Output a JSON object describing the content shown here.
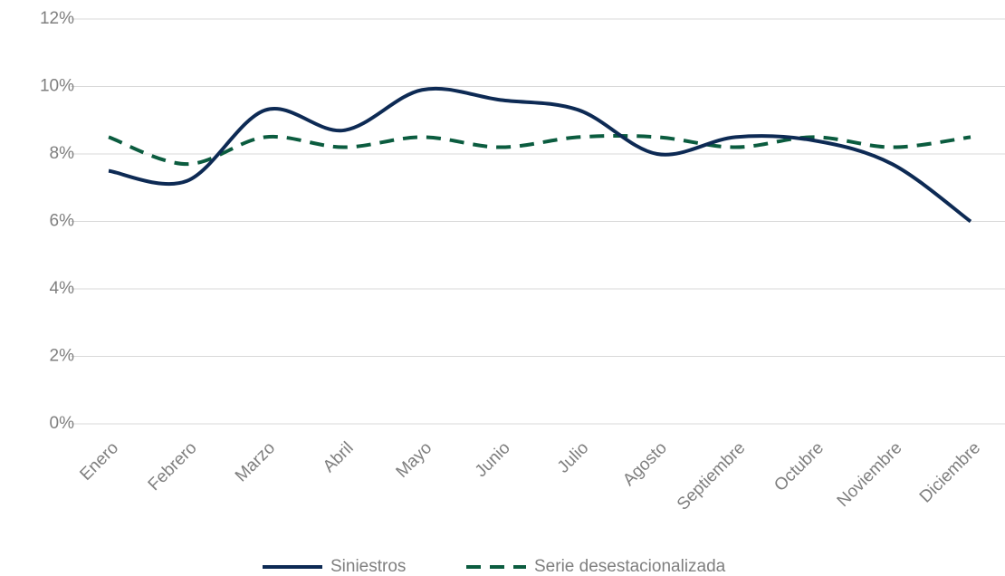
{
  "chart_data": {
    "type": "line",
    "categories": [
      "Enero",
      "Febrero",
      "Marzo",
      "Abril",
      "Mayo",
      "Junio",
      "Julio",
      "Agosto",
      "Septiembre",
      "Octubre",
      "Noviembre",
      "Diciembre"
    ],
    "series": [
      {
        "name": "Siniestros",
        "color": "#0d2a54",
        "dash": false,
        "values": [
          7.5,
          7.2,
          9.3,
          8.7,
          9.9,
          9.6,
          9.3,
          8.0,
          8.5,
          8.4,
          7.7,
          6.0
        ]
      },
      {
        "name": "Serie desestacionalizada",
        "color": "#0b5c3f",
        "dash": true,
        "values": [
          8.5,
          7.7,
          8.5,
          8.2,
          8.5,
          8.2,
          8.5,
          8.5,
          8.2,
          8.5,
          8.2,
          8.5
        ]
      }
    ],
    "ylim": [
      0,
      12
    ],
    "yticks": [
      {
        "value": 0,
        "label": "0%"
      },
      {
        "value": 2,
        "label": "2%"
      },
      {
        "value": 4,
        "label": "4%"
      },
      {
        "value": 6,
        "label": "6%"
      },
      {
        "value": 8,
        "label": "8%"
      },
      {
        "value": 10,
        "label": "10%"
      },
      {
        "value": 12,
        "label": "12%"
      }
    ],
    "grid": true,
    "legend": "bottom"
  }
}
